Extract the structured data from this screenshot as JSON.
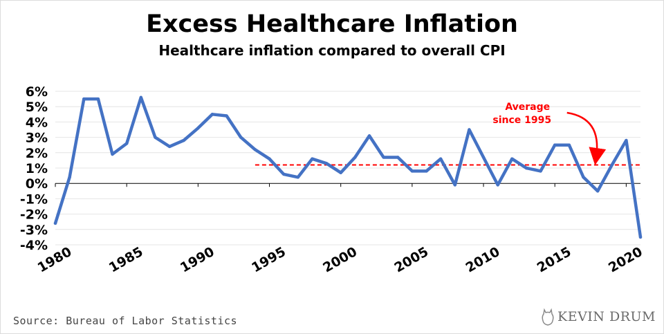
{
  "chart_data": {
    "type": "line",
    "title": "Excess Healthcare Inflation",
    "subtitle": "Healthcare inflation compared to overall CPI",
    "xlabel": "",
    "ylabel": "",
    "xlim": [
      1980,
      2021
    ],
    "ylim": [
      -4,
      6
    ],
    "x_ticks": [
      1980,
      1985,
      1990,
      1995,
      2000,
      2005,
      2010,
      2015,
      2020
    ],
    "y_ticks": [
      6,
      5,
      4,
      3,
      2,
      1,
      0,
      -1,
      -2,
      -3,
      -4
    ],
    "y_tick_format": "%",
    "grid": true,
    "series": [
      {
        "color": "#4472c4",
        "x": [
          1980,
          1981,
          1982,
          1983,
          1984,
          1985,
          1986,
          1987,
          1988,
          1989,
          1990,
          1991,
          1992,
          1993,
          1994,
          1995,
          1996,
          1997,
          1998,
          1999,
          2000,
          2001,
          2002,
          2003,
          2004,
          2005,
          2006,
          2007,
          2008,
          2009,
          2010,
          2011,
          2012,
          2013,
          2014,
          2015,
          2016,
          2017,
          2018,
          2019,
          2020,
          2021
        ],
        "values": [
          -2.6,
          0.4,
          5.5,
          5.5,
          1.9,
          2.6,
          5.6,
          3.0,
          2.4,
          2.8,
          3.6,
          4.5,
          4.4,
          3.0,
          2.2,
          1.6,
          0.6,
          0.4,
          1.6,
          1.3,
          0.7,
          1.7,
          3.1,
          1.7,
          1.7,
          0.8,
          0.8,
          1.6,
          -0.1,
          3.5,
          1.7,
          -0.1,
          1.6,
          1.0,
          0.8,
          2.5,
          2.5,
          0.4,
          -0.5,
          1.2,
          2.8,
          -3.5
        ]
      }
    ],
    "reference_line": {
      "value": 1.2,
      "x_start": 1994,
      "x_end": 2021,
      "color": "#ff0000",
      "label_line1": "Average",
      "label_line2": "since 1995"
    }
  },
  "footer": {
    "source": "Source: Bureau of Labor Statistics",
    "brand": "KEVIN DRUM"
  }
}
